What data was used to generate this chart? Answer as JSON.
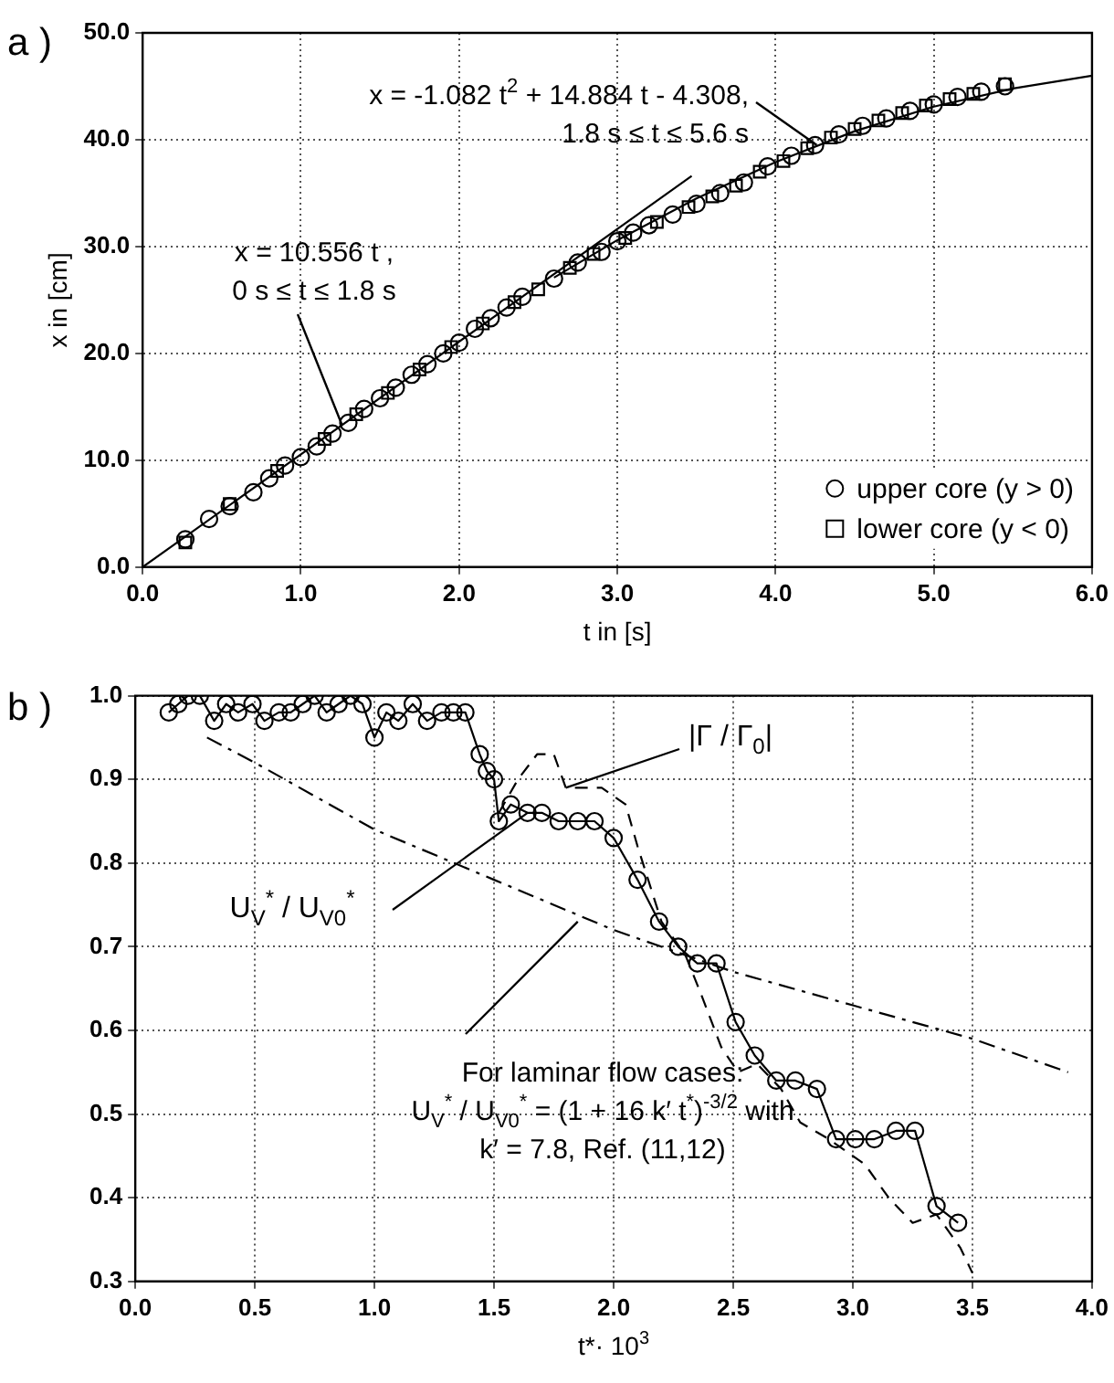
{
  "chart_data": [
    {
      "type": "scatter",
      "title": "a )",
      "xlabel": "t in [s]",
      "ylabel": "x in [cm]",
      "xlim": [
        0,
        6
      ],
      "ylim": [
        0,
        50
      ],
      "xticks": [
        {
          "value": 0,
          "label": "0.0"
        },
        {
          "value": 1,
          "label": "1.0"
        },
        {
          "value": 2,
          "label": "2.0"
        },
        {
          "value": 3,
          "label": "3.0"
        },
        {
          "value": 4,
          "label": "4.0"
        },
        {
          "value": 5,
          "label": "5.0"
        },
        {
          "value": 6,
          "label": "6.0"
        }
      ],
      "yticks": [
        {
          "value": 0,
          "label": "0.0"
        },
        {
          "value": 10,
          "label": "10.0"
        },
        {
          "value": 20,
          "label": "20.0"
        },
        {
          "value": 30,
          "label": "30.0"
        },
        {
          "value": 40,
          "label": "40.0"
        },
        {
          "value": 50,
          "label": "50.0"
        }
      ],
      "grid": true,
      "legend": "bottom right",
      "series": [
        {
          "name": "upper core (y > 0)",
          "color": "#000000",
          "marker": "circle",
          "x": [
            0.27,
            0.42,
            0.55,
            0.7,
            0.8,
            0.9,
            1.0,
            1.1,
            1.2,
            1.3,
            1.4,
            1.5,
            1.6,
            1.7,
            1.8,
            1.9,
            2.0,
            2.1,
            2.2,
            2.3,
            2.4,
            2.6,
            2.75,
            2.9,
            3.0,
            3.1,
            3.2,
            3.35,
            3.5,
            3.65,
            3.8,
            3.95,
            4.1,
            4.25,
            4.4,
            4.55,
            4.7,
            4.85,
            5.0,
            5.15,
            5.3,
            5.45
          ],
          "values": [
            2.6,
            4.5,
            5.7,
            7,
            8.3,
            9.5,
            10.3,
            11.3,
            12.5,
            13.5,
            14.8,
            15.8,
            16.8,
            18,
            19,
            20,
            21,
            22.3,
            23.3,
            24.3,
            25.3,
            27,
            28.5,
            29.5,
            30.5,
            31.3,
            32,
            33,
            34,
            35,
            36,
            37.5,
            38.5,
            39.5,
            40.5,
            41.3,
            42,
            42.7,
            43.3,
            44,
            44.5,
            45
          ]
        },
        {
          "name": "lower core (y < 0)",
          "color": "#000000",
          "marker": "square",
          "x": [
            0.27,
            0.55,
            0.85,
            1.15,
            1.35,
            1.55,
            1.75,
            1.95,
            2.15,
            2.35,
            2.5,
            2.7,
            2.85,
            3.05,
            3.25,
            3.45,
            3.6,
            3.75,
            3.9,
            4.05,
            4.2,
            4.35,
            4.5,
            4.65,
            4.8,
            4.95,
            5.1,
            5.25,
            5.45
          ],
          "values": [
            2.3,
            5.9,
            9.0,
            12.0,
            14.3,
            16.3,
            18.5,
            20.6,
            22.8,
            24.8,
            26,
            28,
            29.3,
            30.8,
            32.3,
            33.7,
            34.7,
            35.7,
            37,
            38,
            39.2,
            40.2,
            41,
            41.8,
            42.5,
            43.2,
            43.8,
            44.3,
            45.2
          ]
        },
        {
          "type": "line",
          "color": "#000000",
          "marker": "none",
          "line_style": "solid",
          "x": [
            0,
            3.47
          ],
          "values": [
            0,
            36.6
          ]
        },
        {
          "type": "line",
          "color": "#000000",
          "marker": "none",
          "line_style": "solid",
          "x": [
            2.6,
            3,
            3.5,
            4,
            4.5,
            5,
            5.5,
            6
          ],
          "values": [
            27.1,
            30.6,
            34.5,
            37.9,
            40.8,
            43.1,
            44.8,
            46.0
          ]
        }
      ],
      "annotations": [
        "x = 10.556 t ,",
        {
          "text": "0 s ≤ t ≤ 1.8 s",
          "x": 1.26,
          "y": 13.3
        },
        {
          "text": "x = -1.082 t$^{2}$ + 14.884 t - 4.308,",
          "x": 4.26,
          "y": 39.5
        },
        "1.8 s ≤ t ≤ 5.6 s"
      ]
    },
    {
      "type": "line",
      "title": "b )",
      "xlabel": "t*· 10$^{3}$",
      "xlim": [
        0,
        4
      ],
      "ylim": [
        0.3,
        1.0
      ],
      "xticks": [
        {
          "value": 0,
          "label": "0.0"
        },
        {
          "value": 0.5,
          "label": "0.5"
        },
        {
          "value": 1,
          "label": "1.0"
        },
        {
          "value": 1.5,
          "label": "1.5"
        },
        {
          "value": 2,
          "label": "2.0"
        },
        {
          "value": 2.5,
          "label": "2.5"
        },
        {
          "value": 3,
          "label": "3.0"
        },
        {
          "value": 3.5,
          "label": "3.5"
        },
        {
          "value": 4,
          "label": "4.0"
        }
      ],
      "yticks": [
        0.3,
        0.4,
        0.5,
        0.6,
        0.7,
        0.8,
        0.9,
        {
          "value": 1,
          "label": "1.0"
        }
      ],
      "grid": true,
      "series": [
        {
          "name": "U$_{V}$$^{*}$ / U$_{V0}$$^{*}$",
          "color": "#000000",
          "marker": "circle",
          "line_style": "solid",
          "x": [
            0.14,
            0.18,
            0.22,
            0.27,
            0.33,
            0.38,
            0.43,
            0.49,
            0.54,
            0.6,
            0.65,
            0.7,
            0.75,
            0.8,
            0.85,
            0.9,
            0.95,
            1.0,
            1.05,
            1.1,
            1.16,
            1.22,
            1.28,
            1.33,
            1.38,
            1.44,
            1.47,
            1.5,
            1.52,
            1.57,
            1.64,
            1.7,
            1.77,
            1.85,
            1.92,
            2.0,
            2.1,
            2.19,
            2.27,
            2.35,
            2.43,
            2.51,
            2.59,
            2.68,
            2.76,
            2.85,
            2.93,
            3.01,
            3.09,
            3.18,
            3.26,
            3.35,
            3.44
          ],
          "values": [
            0.98,
            0.99,
            1.0,
            1.0,
            0.97,
            0.99,
            0.98,
            0.99,
            0.97,
            0.98,
            0.98,
            0.99,
            1.0,
            0.98,
            0.99,
            1.0,
            0.99,
            0.95,
            0.98,
            0.97,
            0.99,
            0.97,
            0.98,
            0.98,
            0.98,
            0.93,
            0.91,
            0.9,
            0.85,
            0.87,
            0.86,
            0.86,
            0.85,
            0.85,
            0.85,
            0.83,
            0.78,
            0.73,
            0.7,
            0.68,
            0.68,
            0.61,
            0.57,
            0.54,
            0.54,
            0.53,
            0.47,
            0.47,
            0.47,
            0.48,
            0.48,
            0.39,
            0.37
          ]
        },
        {
          "name": "|Γ / Γ$_{0}$|",
          "color": "#000000",
          "marker": "none",
          "line_style": "dashed",
          "x": [
            1.52,
            1.6,
            1.68,
            1.75,
            1.8,
            1.95,
            2.05,
            2.1,
            2.2,
            2.3,
            2.37,
            2.45,
            2.52,
            2.6,
            2.7,
            2.78,
            2.9,
            3.05,
            3.15,
            3.25,
            3.35,
            3.45,
            3.5
          ],
          "values": [
            0.86,
            0.9,
            0.93,
            0.93,
            0.89,
            0.89,
            0.87,
            0.82,
            0.73,
            0.69,
            0.64,
            0.58,
            0.55,
            0.56,
            0.53,
            0.49,
            0.47,
            0.44,
            0.4,
            0.37,
            0.38,
            0.34,
            0.31
          ]
        },
        {
          "color": "#000000",
          "marker": "none",
          "line_style": "dashdot",
          "x": [
            0.3,
            0.5,
            1,
            1.5,
            2,
            2.5,
            3,
            3.5,
            3.9
          ],
          "values": [
            0.95,
            0.92,
            0.84,
            0.78,
            0.72,
            0.67,
            0.63,
            0.59,
            0.55
          ]
        }
      ],
      "annotations": [
        {
          "text": "For laminar flow cases:",
          "x": 1.85,
          "y": 0.73
        },
        "U$_{V}$$^{*}$ / U$_{V0}$$^{*}$ = (1 + 16 k′ t$^{*}$)$^{-3/2}$ with",
        "k′ = 7.8, Ref. (11,12)"
      ]
    }
  ]
}
